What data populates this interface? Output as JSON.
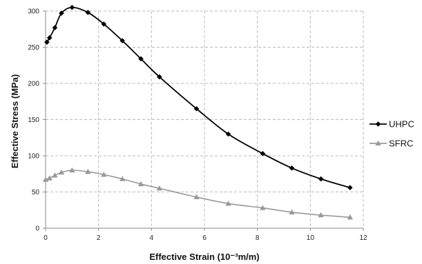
{
  "chart_data": {
    "type": "line",
    "title": "",
    "xlabel": "Effective Strain  (10⁻³m/m)",
    "ylabel": "Effective Stress (MPa)",
    "xlim": [
      0,
      12
    ],
    "ylim": [
      0,
      300
    ],
    "xticks": [
      0,
      2,
      4,
      6,
      8,
      10,
      12
    ],
    "yticks": [
      0,
      50,
      100,
      150,
      200,
      250,
      300
    ],
    "grid": "horizontal and vertical dashed",
    "legend_position": "right",
    "series": [
      {
        "name": "UHPC",
        "color": "#000000",
        "marker": "diamond",
        "points": [
          [
            0.05,
            257
          ],
          [
            0.15,
            263
          ],
          [
            0.35,
            277
          ],
          [
            0.6,
            297
          ],
          [
            1.0,
            305
          ],
          [
            1.6,
            298
          ],
          [
            2.2,
            282
          ],
          [
            2.9,
            259
          ],
          [
            3.6,
            234
          ],
          [
            4.3,
            209
          ],
          [
            5.7,
            165
          ],
          [
            6.9,
            130
          ],
          [
            8.2,
            103
          ],
          [
            9.3,
            83
          ],
          [
            10.4,
            68
          ],
          [
            11.5,
            56
          ]
        ]
      },
      {
        "name": "SFRC",
        "color": "#999999",
        "marker": "triangle",
        "points": [
          [
            0.0,
            67
          ],
          [
            0.15,
            69
          ],
          [
            0.35,
            73
          ],
          [
            0.6,
            77
          ],
          [
            1.0,
            80
          ],
          [
            1.6,
            78
          ],
          [
            2.2,
            74
          ],
          [
            2.9,
            68
          ],
          [
            3.6,
            61
          ],
          [
            4.3,
            55
          ],
          [
            5.7,
            43
          ],
          [
            6.9,
            34
          ],
          [
            8.2,
            28
          ],
          [
            9.3,
            22
          ],
          [
            10.4,
            18
          ],
          [
            11.5,
            15
          ]
        ]
      }
    ]
  }
}
